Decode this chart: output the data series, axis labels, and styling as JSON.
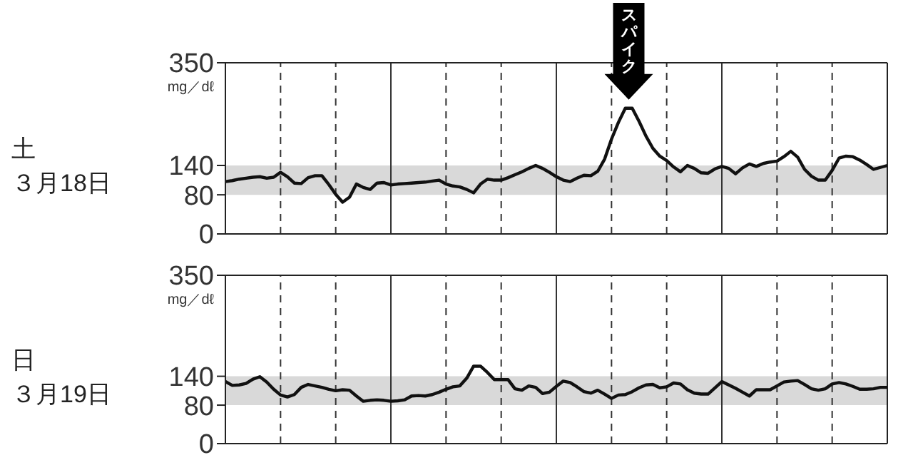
{
  "chart_data": [
    {
      "type": "line",
      "title": "土",
      "subtitle": "３月18日",
      "ylabel": "mg／dℓ",
      "ylim": [
        0,
        350
      ],
      "yticks": [
        0,
        80,
        140,
        350
      ],
      "tick_labels": "y",
      "grid": "x",
      "marker": "none",
      "line_style": "solid",
      "bands": [
        {
          "axis": "y",
          "from": 80,
          "to": 140,
          "color": "#d9d9d9"
        }
      ],
      "annotations": [
        {
          "text": "スパイク",
          "y": 257
        }
      ],
      "categories": [
        null,
        null,
        null,
        null,
        null,
        null,
        null,
        null,
        null,
        null,
        null,
        null,
        null,
        null,
        null,
        null,
        null,
        null,
        null,
        null,
        null,
        null,
        null,
        null,
        null,
        null,
        null,
        null,
        null,
        null,
        null,
        null,
        null,
        null,
        null,
        null,
        null,
        null,
        null,
        null,
        null,
        null,
        null,
        null,
        null,
        null,
        null,
        null,
        null,
        null,
        null,
        null,
        null,
        null,
        null,
        null,
        null,
        null,
        null,
        null,
        null,
        null,
        null,
        null,
        null,
        null,
        null,
        null,
        null,
        null,
        null,
        null,
        null,
        null,
        null,
        null,
        null,
        null,
        null,
        null,
        null,
        null,
        null,
        null,
        null,
        null,
        null,
        null,
        null,
        null,
        null,
        null,
        null,
        null,
        null,
        null,
        null
      ],
      "series": [
        {
          "color": "#111111",
          "values": [
            107,
            109,
            112,
            114,
            116,
            117,
            114,
            116,
            126,
            117,
            104,
            103,
            115,
            119,
            119,
            101,
            81,
            65,
            75,
            102,
            95,
            91,
            104,
            105,
            100,
            102,
            103,
            104,
            105,
            106,
            108,
            110,
            102,
            98,
            96,
            91,
            84,
            102,
            112,
            110,
            110,
            115,
            121,
            127,
            134,
            140,
            134,
            126,
            117,
            110,
            107,
            114,
            120,
            119,
            128,
            153,
            194,
            228,
            257,
            257,
            230,
            200,
            175,
            159,
            150,
            137,
            127,
            140,
            134,
            125,
            124,
            133,
            138,
            134,
            123,
            135,
            143,
            138,
            144,
            147,
            149,
            158,
            169,
            157,
            132,
            118,
            110,
            110,
            130,
            155,
            159,
            158,
            151,
            142,
            132,
            136,
            140
          ]
        }
      ]
    },
    {
      "type": "line",
      "title": "日",
      "subtitle": "３月19日",
      "ylabel": "mg／dℓ",
      "ylim": [
        0,
        350
      ],
      "yticks": [
        0,
        80,
        140,
        350
      ],
      "tick_labels": "y",
      "grid": "x",
      "marker": "none",
      "line_style": "solid",
      "bands": [
        {
          "axis": "y",
          "from": 80,
          "to": 140,
          "color": "#d9d9d9"
        }
      ],
      "categories": [
        null,
        null,
        null,
        null,
        null,
        null,
        null,
        null,
        null,
        null,
        null,
        null,
        null,
        null,
        null,
        null,
        null,
        null,
        null,
        null,
        null,
        null,
        null,
        null,
        null,
        null,
        null,
        null,
        null,
        null,
        null,
        null,
        null,
        null,
        null,
        null,
        null,
        null,
        null,
        null,
        null,
        null,
        null,
        null,
        null,
        null,
        null,
        null,
        null,
        null,
        null,
        null,
        null,
        null,
        null,
        null,
        null,
        null,
        null,
        null,
        null,
        null,
        null,
        null,
        null,
        null,
        null,
        null,
        null,
        null,
        null,
        null,
        null,
        null,
        null,
        null,
        null,
        null,
        null,
        null,
        null,
        null,
        null,
        null,
        null,
        null,
        null,
        null,
        null,
        null,
        null,
        null,
        null,
        null,
        null,
        null,
        null
      ],
      "series": [
        {
          "color": "#111111",
          "values": [
            129,
            121,
            122,
            125,
            134,
            139,
            128,
            113,
            101,
            97,
            102,
            117,
            123,
            120,
            117,
            113,
            110,
            112,
            111,
            99,
            88,
            90,
            91,
            90,
            88,
            89,
            91,
            99,
            100,
            99,
            102,
            107,
            113,
            118,
            120,
            136,
            161,
            161,
            148,
            133,
            133,
            133,
            114,
            111,
            120,
            117,
            104,
            107,
            119,
            130,
            127,
            118,
            108,
            105,
            111,
            103,
            94,
            101,
            102,
            108,
            116,
            122,
            123,
            116,
            118,
            126,
            124,
            112,
            105,
            103,
            103,
            116,
            129,
            122,
            115,
            107,
            99,
            112,
            112,
            112,
            120,
            128,
            130,
            131,
            123,
            114,
            111,
            114,
            124,
            127,
            124,
            119,
            113,
            113,
            114,
            117,
            117
          ]
        }
      ]
    }
  ]
}
